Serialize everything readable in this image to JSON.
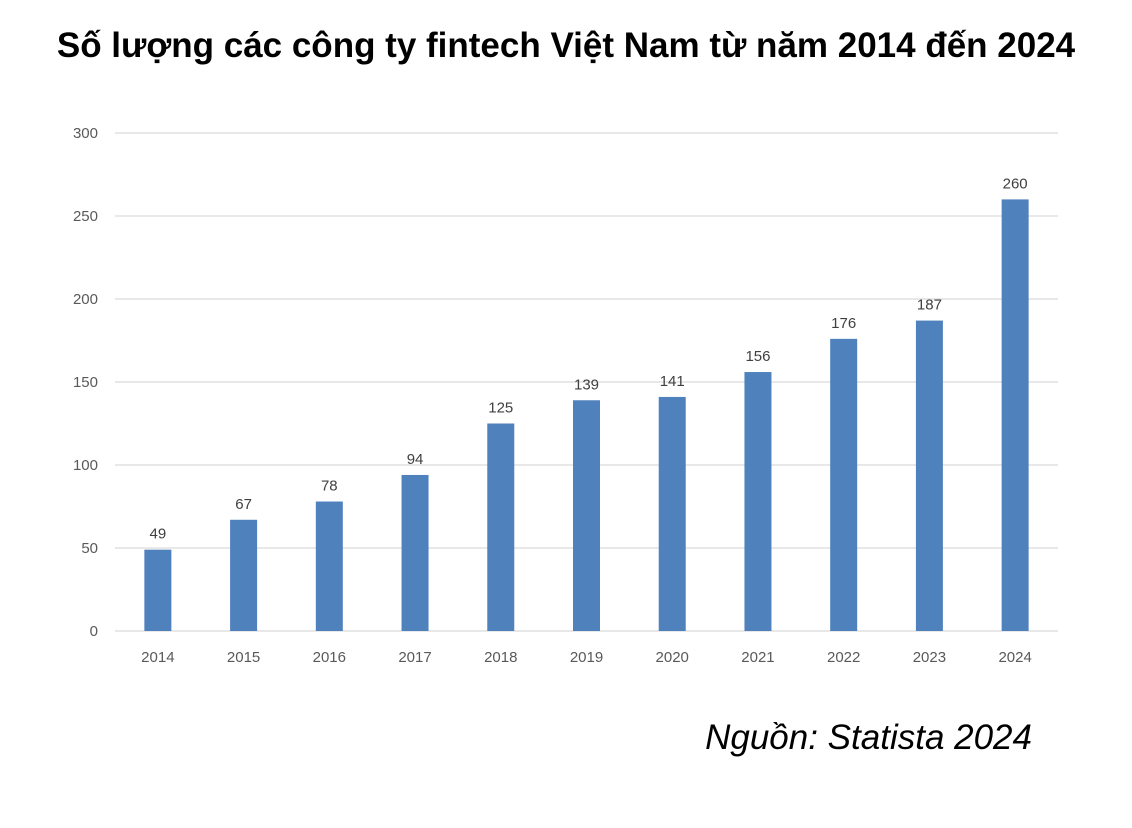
{
  "chart_data": {
    "type": "bar",
    "title": "Số lượng các công ty fintech Việt Nam từ năm 2014 đến 2024",
    "xlabel": "",
    "ylabel": "",
    "categories": [
      "2014",
      "2015",
      "2016",
      "2017",
      "2018",
      "2019",
      "2020",
      "2021",
      "2022",
      "2023",
      "2024"
    ],
    "values": [
      49,
      67,
      78,
      94,
      125,
      139,
      141,
      156,
      176,
      187,
      260
    ],
    "ylim": [
      0,
      300
    ],
    "yticks": [
      0,
      50,
      100,
      150,
      200,
      250,
      300
    ],
    "data_labels": true,
    "grid": true,
    "legend": "none",
    "bar_color": "#4F81BD",
    "grid_color": "#D9D9D9"
  },
  "source_note": "Nguồn: Statista 2024"
}
